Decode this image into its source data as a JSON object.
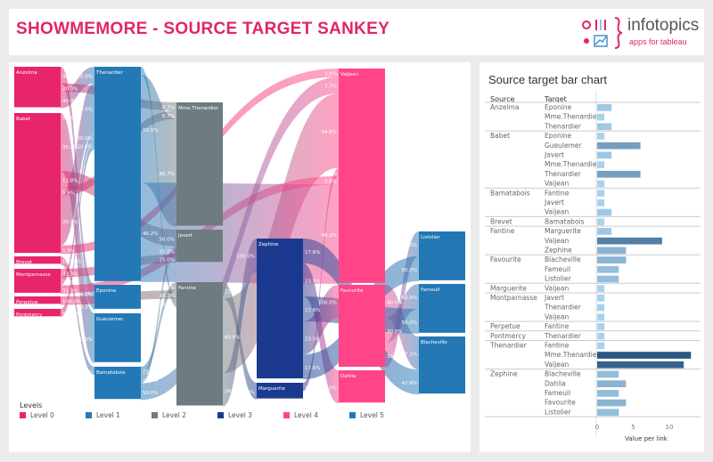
{
  "header": {
    "title": "SHOWMEMORE - SOURCE TARGET SANKEY",
    "logo_text": "infotopics",
    "logo_sub": "apps for tableau"
  },
  "sankey": {
    "levels": [
      {
        "label": "Level 0",
        "color": "#e8246b"
      },
      {
        "label": "Level 1",
        "color": "#2379b5"
      },
      {
        "label": "Level 2",
        "color": "#6e7b80"
      },
      {
        "label": "Level 3",
        "color": "#1b3a8f"
      },
      {
        "label": "Level 4",
        "color": "#ff4488"
      },
      {
        "label": "Level 5",
        "color": "#2377b4"
      }
    ],
    "legend_title": "Levels",
    "nodes": [
      {
        "name": "Anzelma",
        "level": 0
      },
      {
        "name": "Babet",
        "level": 0
      },
      {
        "name": "Brevet",
        "level": 0
      },
      {
        "name": "Montparnasse",
        "level": 0
      },
      {
        "name": "Perpetue",
        "level": 0
      },
      {
        "name": "Pontmercy",
        "level": 0
      },
      {
        "name": "Thenardier",
        "level": 1
      },
      {
        "name": "Eponine",
        "level": 1
      },
      {
        "name": "Gueulemer",
        "level": 1
      },
      {
        "name": "Bamatabois",
        "level": 1
      },
      {
        "name": "Mme.Thenardier",
        "level": 2
      },
      {
        "name": "Javert",
        "level": 2
      },
      {
        "name": "Fantine",
        "level": 2
      },
      {
        "name": "Zephine",
        "level": 3
      },
      {
        "name": "Marguerite",
        "level": 3
      },
      {
        "name": "Valjean",
        "level": 4
      },
      {
        "name": "Favourite",
        "level": 4
      },
      {
        "name": "Dahlia",
        "level": 4
      },
      {
        "name": "Listolier",
        "level": 5
      },
      {
        "name": "Fameuil",
        "level": 5
      },
      {
        "name": "Blacheville",
        "level": 5
      }
    ]
  },
  "chart_data": {
    "type": "bar",
    "title": "Source target bar chart",
    "columns": {
      "source": "Source",
      "target": "Target"
    },
    "xlabel": "Value per link",
    "xlim": [
      0,
      13.7
    ],
    "xticks": [
      "0",
      "5",
      "10"
    ],
    "groups": [
      {
        "source": "Anzelma",
        "targets": [
          {
            "target": "Eponine",
            "value": 2
          },
          {
            "target": "Mme.Thenardier",
            "value": 1
          },
          {
            "target": "Thenardier",
            "value": 2
          }
        ]
      },
      {
        "source": "Babet",
        "targets": [
          {
            "target": "Eponine",
            "value": 1
          },
          {
            "target": "Gueulemer",
            "value": 6
          },
          {
            "target": "Javert",
            "value": 2
          },
          {
            "target": "Mme.Thenardier",
            "value": 1
          },
          {
            "target": "Thenardier",
            "value": 6
          },
          {
            "target": "Valjean",
            "value": 1
          }
        ]
      },
      {
        "source": "Bamatabois",
        "targets": [
          {
            "target": "Fantine",
            "value": 1
          },
          {
            "target": "Javert",
            "value": 1
          },
          {
            "target": "Valjean",
            "value": 2
          }
        ]
      },
      {
        "source": "Brevet",
        "targets": [
          {
            "target": "Bamatabois",
            "value": 1
          }
        ]
      },
      {
        "source": "Fantine",
        "targets": [
          {
            "target": "Marguerite",
            "value": 2
          },
          {
            "target": "Valjean",
            "value": 9
          },
          {
            "target": "Zephine",
            "value": 4
          }
        ]
      },
      {
        "source": "Favourite",
        "targets": [
          {
            "target": "Blacheville",
            "value": 4
          },
          {
            "target": "Fameuil",
            "value": 3
          },
          {
            "target": "Listolier",
            "value": 3
          }
        ]
      },
      {
        "source": "Marguerite",
        "targets": [
          {
            "target": "Valjean",
            "value": 1
          }
        ]
      },
      {
        "source": "Montparnasse",
        "targets": [
          {
            "target": "Javert",
            "value": 1
          },
          {
            "target": "Thenardier",
            "value": 1
          },
          {
            "target": "Valjean",
            "value": 1
          }
        ]
      },
      {
        "source": "Perpetue",
        "targets": [
          {
            "target": "Fantine",
            "value": 1
          }
        ]
      },
      {
        "source": "Pontmercy",
        "targets": [
          {
            "target": "Thenardier",
            "value": 1
          }
        ]
      },
      {
        "source": "Thenardier",
        "targets": [
          {
            "target": "Fantine",
            "value": 1
          },
          {
            "target": "Mme.Thenardier",
            "value": 13
          },
          {
            "target": "Valjean",
            "value": 12
          }
        ]
      },
      {
        "source": "Zephine",
        "targets": [
          {
            "target": "Blacheville",
            "value": 3
          },
          {
            "target": "Dahlia",
            "value": 4
          },
          {
            "target": "Fameuil",
            "value": 3
          },
          {
            "target": "Favourite",
            "value": 4
          },
          {
            "target": "Listolier",
            "value": 3
          }
        ]
      }
    ]
  }
}
